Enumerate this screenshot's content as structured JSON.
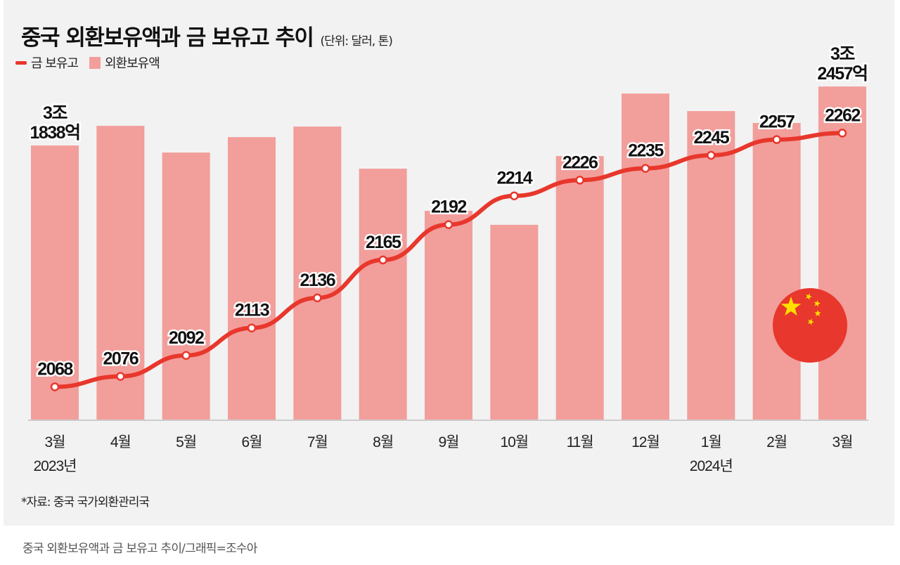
{
  "caption": "중국 외환보유액과 금 보유고 추이/그래픽=조수아",
  "chart_data": {
    "type": "bar+line",
    "title": "중국 외환보유액과 금 보유고 추이",
    "unit_note": "(단위: 달러, 톤)",
    "legend": [
      "금 보유고",
      "외환보유액"
    ],
    "legend_placement": "top-left",
    "grid": false,
    "categories": [
      "3월",
      "4월",
      "5월",
      "6월",
      "7월",
      "8월",
      "9월",
      "10월",
      "11월",
      "12월",
      "1월",
      "2월",
      "3월"
    ],
    "year_labels": {
      "0": "2023년",
      "10": "2024년"
    },
    "series": [
      {
        "name": "외환보유액",
        "type": "bar",
        "unit": "억 달러",
        "values": [
          31838,
          32044,
          31764,
          31926,
          32037,
          31595,
          31153,
          31006,
          31727,
          32383,
          32199,
          32074,
          32457
        ],
        "ylim": [
          28964,
          32627
        ],
        "annotations": {
          "0": [
            "3조",
            "1838억"
          ],
          "12": [
            "3조",
            "2457억"
          ]
        },
        "color": "#f29e9b"
      },
      {
        "name": "금 보유고",
        "type": "line",
        "unit": "톤",
        "values": [
          2068,
          2076,
          2092,
          2113,
          2136,
          2165,
          2192,
          2214,
          2226,
          2235,
          2245,
          2257,
          2262
        ],
        "ylim": [
          2043,
          2310
        ],
        "color": "#e8372c"
      }
    ],
    "source": "*자료: 중국 국가외환관리국",
    "flag_icon": "china-flag"
  }
}
